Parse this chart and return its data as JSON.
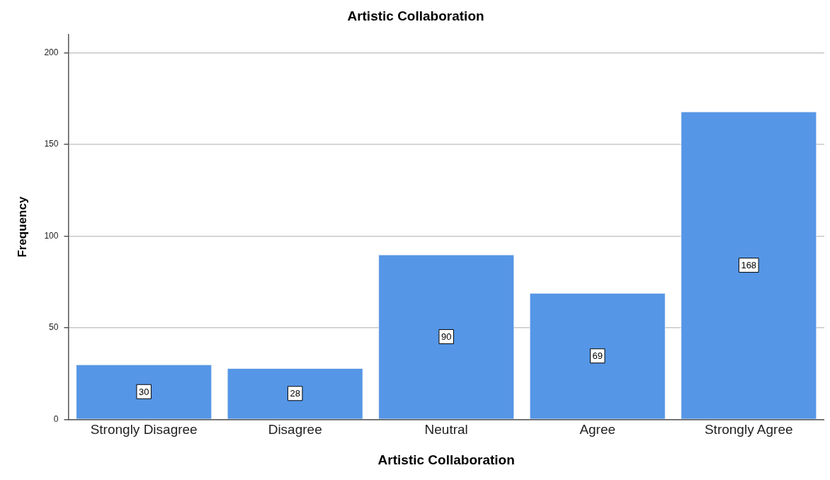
{
  "chart_data": {
    "type": "bar",
    "title": "Artistic Collaboration",
    "xlabel": "Artistic Collaboration",
    "ylabel": "Frequency",
    "categories": [
      "Strongly Disagree",
      "Disagree",
      "Neutral",
      "Agree",
      "Strongly Agree"
    ],
    "values": [
      30,
      28,
      90,
      69,
      168
    ],
    "color": "#5596e6",
    "ylim": [
      0,
      210
    ],
    "yticks": [
      0,
      50,
      100,
      150,
      200
    ],
    "grid": "y",
    "legend": false,
    "data_labels": true
  }
}
